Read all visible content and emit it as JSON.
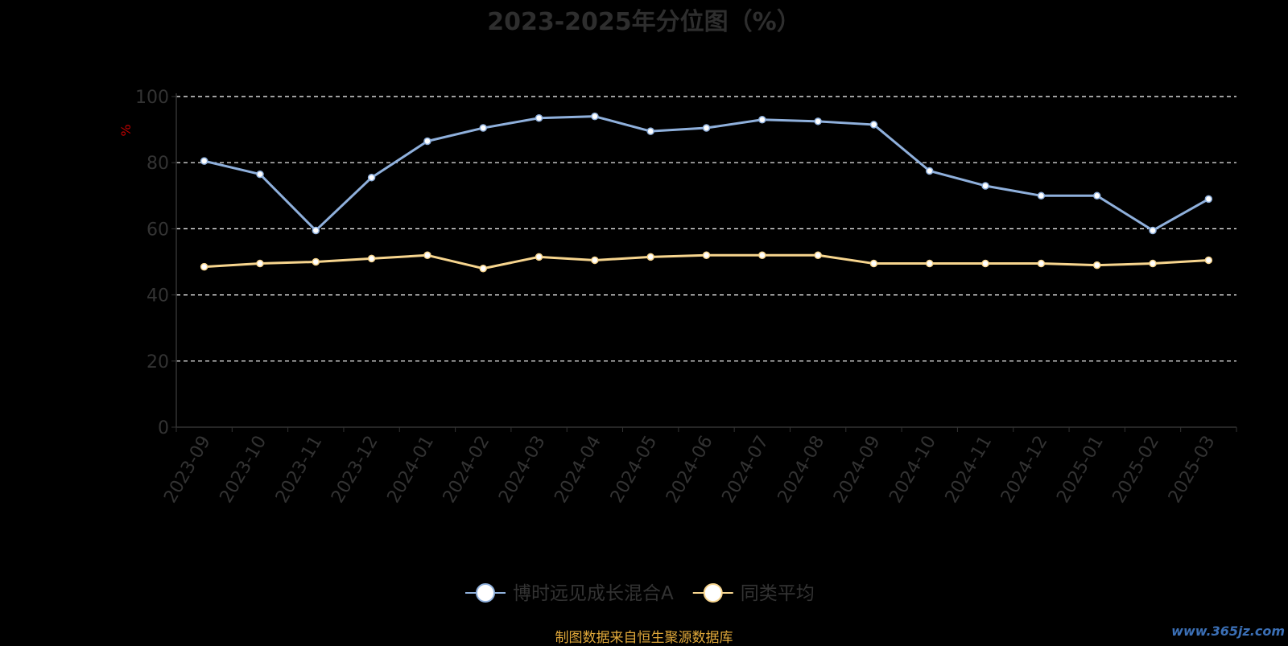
{
  "title": "2023-2025年分位图（%）",
  "source_note": "制图数据来自恒生聚源数据库",
  "watermark": "www.365jz.com",
  "colors": {
    "background": "#000000",
    "fund_line": "#8fb0dc",
    "average_line": "#f7d58e",
    "grid": "#ffffff",
    "axis_text": "#333333",
    "unit_label": "#c00000",
    "source_text": "#e0a83a"
  },
  "chart_data": {
    "type": "line",
    "title": "2023-2025年分位图（%）",
    "ylabel": "%",
    "xlabel": "",
    "ylim": [
      0,
      100
    ],
    "yticks": [
      0,
      20,
      40,
      60,
      80,
      100
    ],
    "grid": true,
    "legend_position": "bottom-center",
    "categories": [
      "2023-09",
      "2023-10",
      "2023-11",
      "2023-12",
      "2024-01",
      "2024-02",
      "2024-03",
      "2024-04",
      "2024-05",
      "2024-06",
      "2024-07",
      "2024-08",
      "2024-09",
      "2024-10",
      "2024-11",
      "2024-12",
      "2025-01",
      "2025-02",
      "2025-03"
    ],
    "series": [
      {
        "name": "博时远见成长混合A",
        "values": [
          80.5,
          76.5,
          59.5,
          75.5,
          86.5,
          90.5,
          93.5,
          94,
          89.5,
          90.5,
          93,
          92.5,
          91.5,
          77.5,
          73,
          70,
          70,
          59.5,
          69
        ]
      },
      {
        "name": "同类平均",
        "values": [
          48.5,
          49.5,
          50,
          51,
          52,
          48,
          51.5,
          50.5,
          51.5,
          52,
          52,
          52,
          49.5,
          49.5,
          49.5,
          49.5,
          49,
          49.5,
          50.5
        ]
      }
    ]
  }
}
